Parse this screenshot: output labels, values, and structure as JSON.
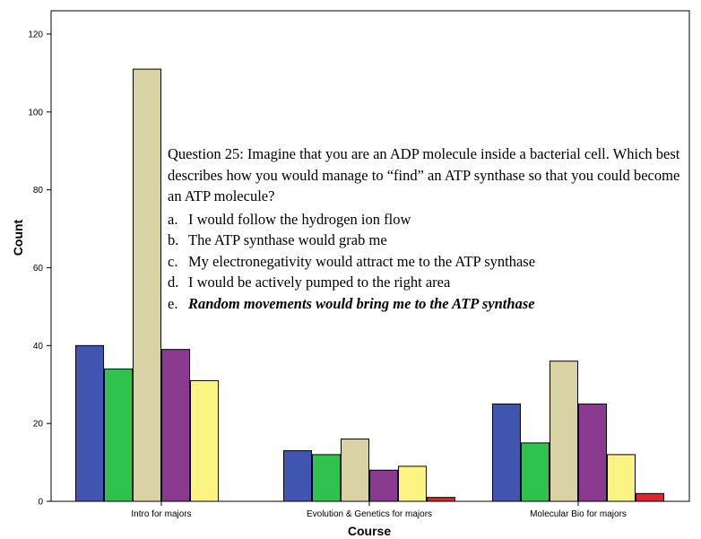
{
  "chart_data": {
    "type": "bar",
    "xlabel": "Course",
    "ylabel": "Count",
    "ylim": [
      0,
      120
    ],
    "yticks": [
      0,
      20,
      40,
      60,
      80,
      100,
      120
    ],
    "grid": false,
    "categories": [
      "Intro for majors",
      "Evolution & Genetics for majors",
      "Molecular Bio for majors"
    ],
    "series": [
      {
        "values": [
          40,
          13,
          25
        ],
        "color": "#4055b0"
      },
      {
        "values": [
          34,
          12,
          15
        ],
        "color": "#2fc24f"
      },
      {
        "values": [
          111,
          16,
          36
        ],
        "color": "#d9d2a5"
      },
      {
        "values": [
          39,
          8,
          25
        ],
        "color": "#8a3a8f"
      },
      {
        "values": [
          31,
          9,
          12
        ],
        "color": "#fbf482"
      },
      {
        "values": [
          0,
          1,
          2
        ],
        "color": "#e0262c"
      }
    ]
  },
  "question": {
    "title": "Question 25: Imagine that you are an ADP molecule inside a bacterial cell. Which best describes how you would manage to “find” an ATP synthase so that you could become an ATP molecule?",
    "options": [
      {
        "letter": "a.",
        "text": "I would follow the hydrogen ion flow"
      },
      {
        "letter": "b.",
        "text": "The ATP synthase would grab me"
      },
      {
        "letter": "c.",
        "text": "My electronegativity would attract me to the ATP synthase"
      },
      {
        "letter": "d.",
        "text": "I would be actively pumped to the right area"
      },
      {
        "letter": "e.",
        "text": "Random movements would bring me to the ATP synthase"
      }
    ]
  }
}
